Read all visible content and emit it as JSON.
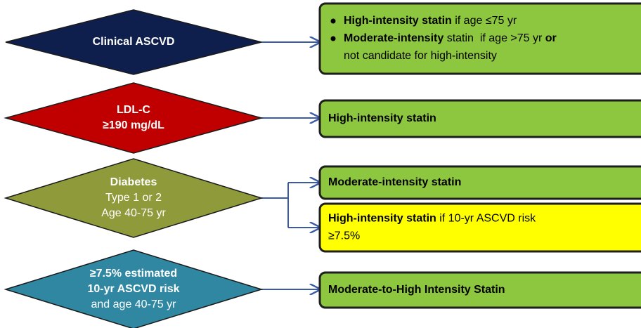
{
  "diamonds": [
    {
      "color": "#0f1f4d",
      "text_color": "#ffffff",
      "lines": [
        [
          {
            "t": "Clinical ASCVD",
            "b": true
          }
        ]
      ]
    },
    {
      "color": "#c00000",
      "text_color": "#ffffff",
      "lines": [
        [
          {
            "t": "LDL-C",
            "b": true
          }
        ],
        [
          {
            "t": "≥190 mg/dL",
            "b": true
          }
        ]
      ]
    },
    {
      "color": "#8f9a3a",
      "text_color": "#ffffff",
      "lines": [
        [
          {
            "t": "Diabetes",
            "b": true
          }
        ],
        [
          {
            "t": "Type 1 or 2",
            "b": false
          }
        ],
        [
          {
            "t": "Age 40-75 yr",
            "b": false
          }
        ]
      ]
    },
    {
      "color": "#2f87a1",
      "text_color": "#ffffff",
      "lines": [
        [
          {
            "t": "≥7.5% estimated",
            "b": true
          }
        ],
        [
          {
            "t": "10-yr ASCVD risk",
            "b": true
          }
        ],
        [
          {
            "t": "and age 40-75 yr",
            "b": false
          }
        ]
      ]
    }
  ],
  "boxes": [
    {
      "color": "#8dc63f",
      "lines": [
        {
          "bullet": true,
          "segs": [
            {
              "t": "High-intensity statin",
              "b": true
            },
            {
              "t": " if age ≤75 yr",
              "b": false
            }
          ]
        },
        {
          "bullet": true,
          "segs": [
            {
              "t": "Moderate-intensity",
              "b": true
            },
            {
              "t": " statin  if age >75 yr ",
              "b": false
            },
            {
              "t": "or",
              "b": true
            }
          ]
        },
        {
          "bullet": false,
          "segs": [
            {
              "t": "not candidate for high-intensity",
              "b": false
            }
          ]
        }
      ]
    },
    {
      "color": "#8dc63f",
      "lines": [
        {
          "bullet": false,
          "segs": [
            {
              "t": "High-intensity statin",
              "b": true
            }
          ]
        }
      ]
    },
    {
      "color": "#8dc63f",
      "lines": [
        {
          "bullet": false,
          "segs": [
            {
              "t": "Moderate-intensity statin",
              "b": true
            }
          ]
        }
      ]
    },
    {
      "color": "#ffff00",
      "lines": [
        {
          "bullet": false,
          "segs": [
            {
              "t": "High-intensity statin",
              "b": true
            },
            {
              "t": " if 10-yr ASCVD risk",
              "b": false
            }
          ]
        },
        {
          "bullet": false,
          "segs": [
            {
              "t": "≥7.5%",
              "b": false
            }
          ]
        }
      ]
    },
    {
      "color": "#8dc63f",
      "lines": [
        {
          "bullet": false,
          "segs": [
            {
              "t": "Moderate-to-High Intensity Statin",
              "b": true
            }
          ]
        }
      ]
    }
  ]
}
